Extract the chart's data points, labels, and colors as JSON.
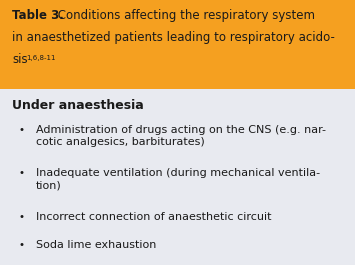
{
  "header_bg_color": "#F5A020",
  "body_bg_color": "#E8EAF0",
  "fig_bg_color": "#E8EAF0",
  "subheading": "Under anaesthesia",
  "header_line1_bold": "Table 3.",
  "header_line1_normal": " Conditions affecting the respiratory system",
  "header_line2": "in anaesthetized patients leading to respiratory acido-",
  "header_line3_main": "sis",
  "header_superscript": "1,6,8-11",
  "bullet_items": [
    "Administration of drugs acting on the CNS (e.g. nar-\ncotic analgesics, barbiturates)",
    "Inadequate ventilation (during mechanical ventila-\ntion)",
    "Incorrect connection of anaesthetic circuit",
    "Soda lime exhaustion"
  ],
  "header_font_size": 8.5,
  "body_font_size": 8.5,
  "subheading_font_size": 9.0,
  "text_color": "#1a1a1a"
}
